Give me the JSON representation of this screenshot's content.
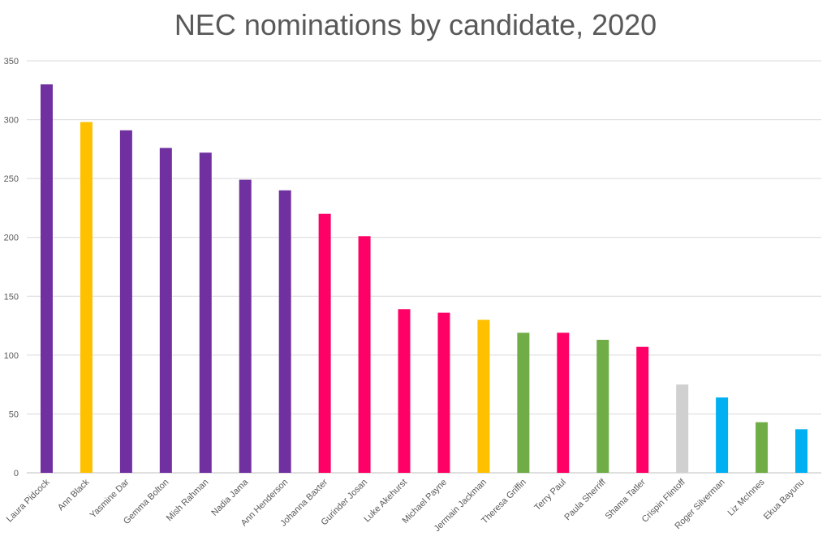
{
  "chart_data": {
    "type": "bar",
    "title": "NEC nominations by candidate, 2020",
    "xlabel": "",
    "ylabel": "",
    "ylim": [
      0,
      350
    ],
    "yticks": [
      0,
      50,
      100,
      150,
      200,
      250,
      300,
      350
    ],
    "grid": true,
    "legend": "none",
    "categories": [
      "Laura Pidcock",
      "Ann Black",
      "Yasmine Dar",
      "Gemma Bolton",
      "Mish Rahman",
      "Nadia Jama",
      "Ann Henderson",
      "Johanna Baxter",
      "Gurinder Josan",
      "Luke Akehurst",
      "Michael Payne",
      "Jermain Jackman",
      "Theresa Griffin",
      "Terry Paul",
      "Paula Sherriff",
      "Shama Tatler",
      "Crispin Flintoff",
      "Roger Silverman",
      "Liz McInnes",
      "Ekua Bayunu"
    ],
    "values": [
      330,
      298,
      291,
      276,
      272,
      249,
      240,
      220,
      201,
      139,
      136,
      130,
      119,
      119,
      113,
      107,
      75,
      64,
      43,
      37
    ],
    "bar_colors": [
      "#7030a0",
      "#ffc000",
      "#7030a0",
      "#7030a0",
      "#7030a0",
      "#7030a0",
      "#7030a0",
      "#ff0066",
      "#ff0066",
      "#ff0066",
      "#ff0066",
      "#ffc000",
      "#70ad47",
      "#ff0066",
      "#70ad47",
      "#ff0066",
      "#d0d0d0",
      "#00b0f0",
      "#70ad47",
      "#00b0f0"
    ]
  }
}
